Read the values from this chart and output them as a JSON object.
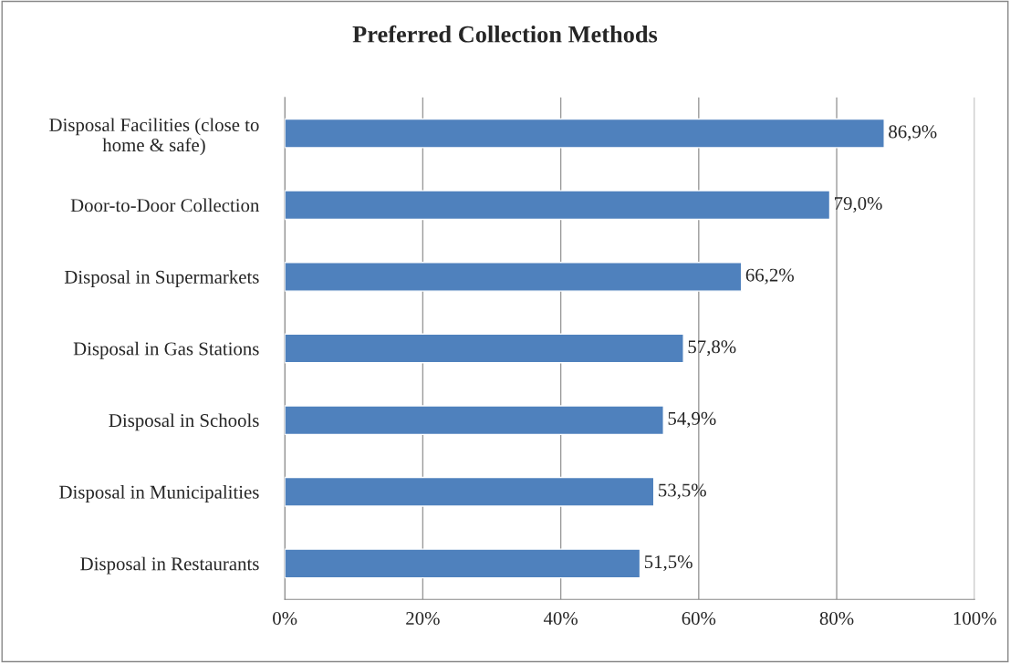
{
  "chart_data": {
    "type": "bar",
    "orientation": "horizontal",
    "title": "Preferred Collection Methods",
    "categories": [
      "Disposal Facilities (close to\nhome & safe)",
      "Door-to-Door Collection",
      "Disposal in Supermarkets",
      "Disposal in Gas Stations",
      "Disposal in Schools",
      "Disposal in Municipalities",
      "Disposal in Restaurants"
    ],
    "values": [
      86.9,
      79.0,
      66.2,
      57.8,
      54.9,
      53.5,
      51.5
    ],
    "value_labels": [
      "86,9%",
      "79,0%",
      "66,2%",
      "57,8%",
      "54,9%",
      "53,5%",
      "51,5%"
    ],
    "color": "#4f81bd",
    "xlim": [
      0,
      100
    ],
    "xticks": [
      {
        "value": 0,
        "label": "0%"
      },
      {
        "value": 20,
        "label": "20%"
      },
      {
        "value": 40,
        "label": "40%"
      },
      {
        "value": 60,
        "label": "60%"
      },
      {
        "value": 80,
        "label": "80%"
      },
      {
        "value": 100,
        "label": "100%"
      }
    ],
    "grid": "x",
    "legend": false
  }
}
